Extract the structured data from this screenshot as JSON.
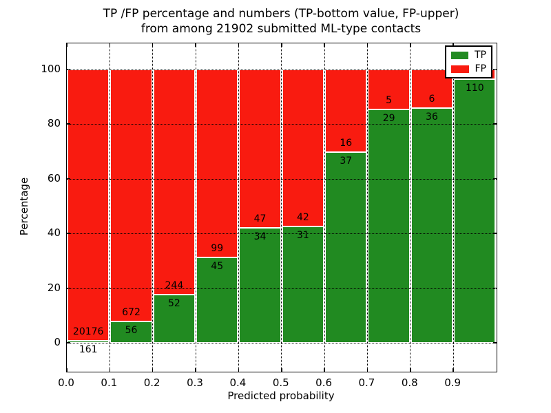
{
  "figure": {
    "title_line1": "TP /FP percentage and numbers (TP-bottom value, FP-upper)",
    "title_line2": "from among 21902 submitted ML-type contacts"
  },
  "chart_data": {
    "type": "bar",
    "stacked": true,
    "unit": "percent",
    "title": "TP /FP percentage and numbers (TP-bottom value, FP-upper)\nfrom among 21902 submitted ML-type contacts",
    "xlabel": "Predicted probability",
    "ylabel": "Percentage",
    "xlim": [
      0.0,
      1.0
    ],
    "ylim": [
      -10.6,
      109.4
    ],
    "grid": "dotted",
    "x_tick_labels": [
      "0.0",
      "0.1",
      "0.2",
      "0.3",
      "0.4",
      "0.5",
      "0.6",
      "0.7",
      "0.8",
      "0.9"
    ],
    "y_tick_labels": [
      "0",
      "20",
      "40",
      "60",
      "80",
      "100"
    ],
    "y_tick_values": [
      0,
      20,
      40,
      60,
      80,
      100
    ],
    "bin_edges": [
      0.0,
      0.1,
      0.2,
      0.3,
      0.4,
      0.5,
      0.6,
      0.7,
      0.8,
      0.9,
      1.0
    ],
    "series": [
      {
        "name": "TP",
        "color": "#218a21",
        "counts": [
          161,
          56,
          52,
          45,
          34,
          31,
          37,
          29,
          36,
          110
        ],
        "percent": [
          0.79,
          7.69,
          17.57,
          31.25,
          41.98,
          42.47,
          69.81,
          85.29,
          85.71,
          96.49
        ]
      },
      {
        "name": "FP",
        "color": "#f91b10",
        "counts": [
          20176,
          672,
          244,
          99,
          47,
          42,
          16,
          5,
          6,
          null
        ],
        "percent": [
          99.21,
          92.31,
          82.43,
          68.75,
          58.02,
          57.53,
          30.19,
          14.71,
          14.29,
          3.51
        ]
      }
    ],
    "bar_labels": {
      "tp": [
        "161",
        "56",
        "52",
        "45",
        "34",
        "31",
        "37",
        "29",
        "36",
        "110"
      ],
      "fp": [
        "20176",
        "672",
        "244",
        "99",
        "47",
        "42",
        "16",
        "5",
        "6",
        ""
      ]
    },
    "legend": {
      "position": "upper right",
      "entries": [
        {
          "label": "TP",
          "color": "#218a21"
        },
        {
          "label": "FP",
          "color": "#f91b10"
        }
      ]
    }
  }
}
